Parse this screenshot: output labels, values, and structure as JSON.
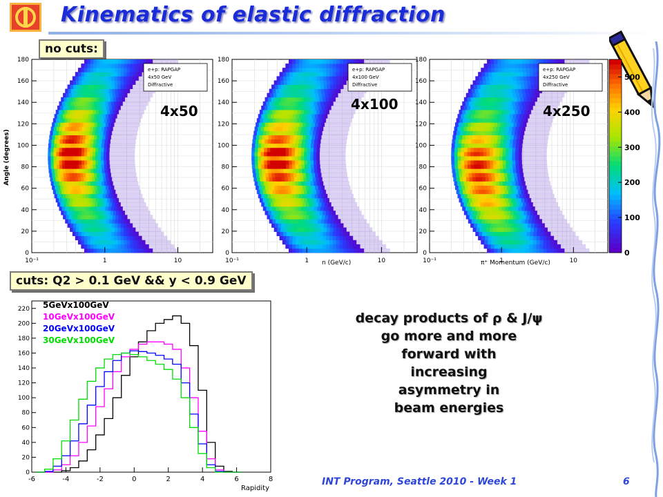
{
  "title": "Kinematics of elastic diffraction",
  "no_cuts_label": "no cuts:",
  "cuts_label": "cuts: Q2 > 0.1 GeV && y < 0.9 GeV",
  "description": [
    "decay products of ρ & J/ψ",
    "go more and more",
    "forward with",
    "increasing",
    "asymmetry in",
    "beam energies"
  ],
  "footer": "INT Program, Seattle 2010 - Week 1",
  "page_number": "6",
  "colors": {
    "title": "#1a2bd8",
    "tag_bg": "#ffffcc",
    "footer": "#2f47d8"
  },
  "chart_data": [
    {
      "type": "heatmap",
      "energy_label": "4x50",
      "ylabel": "Angle (degrees)",
      "xlabel": "",
      "x_scale": "log",
      "xlim": [
        0.1,
        30
      ],
      "ylim": [
        0,
        180
      ],
      "x_ticks": [
        "10⁻¹",
        "1",
        "10"
      ],
      "y_ticks": [
        "0",
        "20",
        "40",
        "60",
        "80",
        "100",
        "120",
        "140",
        "160",
        "180"
      ],
      "legend": [
        "e+p: RAPGAP",
        "4x50 GeV",
        "Diffractive"
      ],
      "legend_position": "top-right"
    },
    {
      "type": "heatmap",
      "energy_label": "4x100",
      "ylabel": "",
      "xlabel": "n (GeV/c)",
      "x_scale": "log",
      "xlim": [
        0.1,
        30
      ],
      "ylim": [
        0,
        180
      ],
      "x_ticks": [
        "10⁻¹",
        "1",
        "10"
      ],
      "y_ticks": [
        "0",
        "20",
        "40",
        "60",
        "80",
        "100",
        "120",
        "140",
        "160",
        "180"
      ],
      "legend": [
        "e+p: RAPGAP",
        "4x100 GeV",
        "Diffractive"
      ],
      "legend_position": "top-right"
    },
    {
      "type": "heatmap",
      "energy_label": "4x250",
      "ylabel": "",
      "xlabel": "π⁺ Momentum (GeV/c)",
      "x_scale": "log",
      "xlim": [
        0.1,
        30
      ],
      "ylim": [
        0,
        180
      ],
      "x_ticks": [
        "10⁻¹",
        "1",
        "10"
      ],
      "y_ticks": [
        "0",
        "20",
        "40",
        "60",
        "80",
        "100",
        "120",
        "140",
        "160",
        "180"
      ],
      "legend": [
        "e+p: RAPGAP",
        "4x250 GeV",
        "Diffractive"
      ],
      "legend_position": "top-right",
      "colorbar": {
        "range": [
          0,
          550
        ],
        "ticks": [
          "0",
          "100",
          "200",
          "300",
          "400",
          "500"
        ]
      }
    },
    {
      "type": "line",
      "xlabel": "Rapidity",
      "ylabel": "",
      "xlim": [
        -6,
        8
      ],
      "ylim": [
        0,
        230
      ],
      "x_ticks": [
        "-6",
        "-4",
        "-2",
        "0",
        "2",
        "4",
        "6",
        "8"
      ],
      "y_ticks": [
        "0",
        "20",
        "40",
        "60",
        "80",
        "100",
        "120",
        "140",
        "160",
        "180",
        "200",
        "220"
      ],
      "legend_position": "top-left",
      "x": [
        -5.5,
        -5,
        -4.5,
        -4,
        -3.5,
        -3,
        -2.5,
        -2,
        -1.5,
        -1,
        -0.5,
        0,
        0.5,
        1,
        1.5,
        2,
        2.5,
        3,
        3.5,
        4,
        4.5,
        5,
        5.5,
        6
      ],
      "series": [
        {
          "name": "5GeVx100GeV",
          "color": "#000000",
          "values": [
            0,
            0,
            0,
            2,
            6,
            15,
            30,
            50,
            72,
            100,
            130,
            155,
            175,
            190,
            200,
            205,
            210,
            200,
            170,
            110,
            40,
            8,
            1,
            0
          ]
        },
        {
          "name": "10GeVx100GeV",
          "color": "#ff00ff",
          "values": [
            0,
            0,
            3,
            10,
            22,
            40,
            62,
            88,
            112,
            135,
            155,
            165,
            172,
            175,
            175,
            172,
            165,
            140,
            100,
            55,
            18,
            3,
            0,
            0
          ]
        },
        {
          "name": "20GeVx100GeV",
          "color": "#0000ff",
          "values": [
            0,
            1,
            8,
            22,
            42,
            65,
            90,
            115,
            135,
            150,
            160,
            163,
            162,
            160,
            157,
            152,
            145,
            120,
            78,
            38,
            10,
            1,
            0,
            0
          ]
        },
        {
          "name": "30GeVx100GeV",
          "color": "#00dd00",
          "values": [
            0,
            4,
            18,
            42,
            70,
            98,
            122,
            140,
            152,
            158,
            160,
            158,
            155,
            150,
            145,
            138,
            125,
            100,
            60,
            25,
            6,
            0,
            0,
            0
          ]
        }
      ]
    }
  ]
}
